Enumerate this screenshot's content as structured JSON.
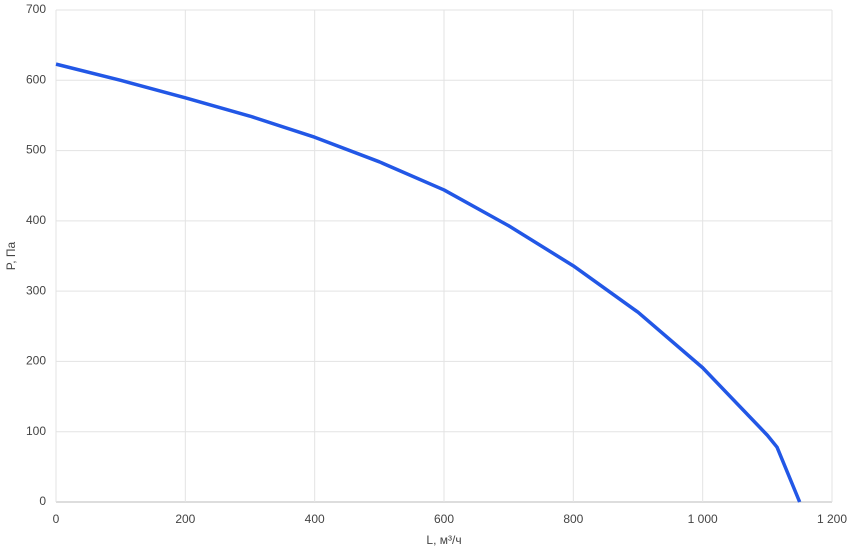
{
  "chart_data": {
    "type": "line",
    "x_label": "L, м³/ч",
    "y_label": "P, Па",
    "x": [
      0,
      100,
      200,
      300,
      400,
      500,
      600,
      700,
      800,
      900,
      1000,
      1100,
      1115,
      1150
    ],
    "series": [
      {
        "color": "#2257e6",
        "values": [
          623,
          600,
          575,
          549,
          519,
          484,
          444,
          393,
          336,
          270,
          191,
          95,
          78,
          0
        ]
      }
    ],
    "xlim": [
      0,
      1200
    ],
    "xticks": [
      0,
      200,
      400,
      600,
      800,
      {
        "value": 1000,
        "label": "1 000"
      },
      {
        "value": 1200,
        "label": "1 200"
      }
    ],
    "ylim": [
      0,
      700
    ],
    "yticks": [
      0,
      100,
      200,
      300,
      400,
      500,
      600,
      700
    ],
    "grid": true
  }
}
